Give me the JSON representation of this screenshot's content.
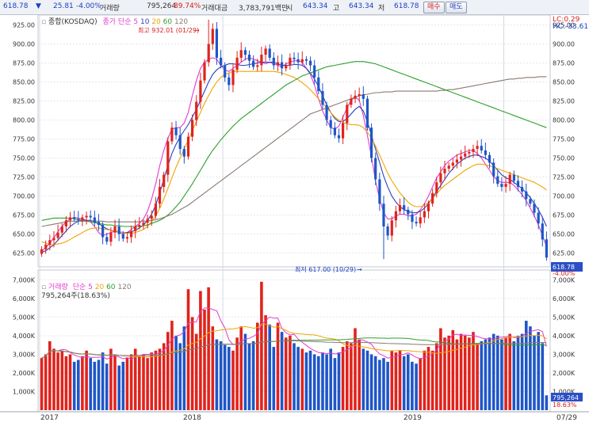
{
  "header": {
    "price": "618.78",
    "arrow": "▼",
    "change": "25.81",
    "change_pct": "-4.00%",
    "volume_label": "거래량",
    "volume": "795,264",
    "volume_ratio": "89.74%",
    "amount_label": "거래대금",
    "amount": "3,783,791백만",
    "open_label": "시",
    "open": "643.34",
    "high_label": "고",
    "high": "643.34",
    "low_label": "저",
    "low": "618.78",
    "buy_label": "매수",
    "sell_label": "매도"
  },
  "price_panel": {
    "name": "종합(KOSDAQ)",
    "ma_label": "종가 단순",
    "ma_periods": [
      "5",
      "10",
      "20",
      "60",
      "120"
    ],
    "lc": "LC:0.29",
    "hc": "HC:-33.61",
    "high_note": "최고 932.01 (01/29)",
    "low_note": "최저 617.00 (10/29)",
    "last_price": "618.78",
    "last_change": "-4.00%"
  },
  "volume_panel": {
    "name": "거래량",
    "ma_label": "단순",
    "ma_periods": [
      "5",
      "20",
      "60",
      "120"
    ],
    "current": "795,264주(18.63%)",
    "last_value": "795,264",
    "last_pct": "18.63%"
  },
  "x_axis": {
    "labels": [
      "2017",
      "2018",
      "2019"
    ],
    "end_label": "07/29"
  },
  "colors": {
    "up": "#e0231c",
    "down": "#1f56c8",
    "ma5": "#e23bd0",
    "ma10": "#2a3fc0",
    "ma20": "#f0a400",
    "ma60": "#2ea02e",
    "ma120": "#8a7a70"
  },
  "chart_data": [
    {
      "type": "candlestick",
      "title": "종합(KOSDAQ)",
      "period": "weekly",
      "ylim": [
        610,
        935
      ],
      "yticks": [
        "925.00",
        "900.00",
        "875.00",
        "850.00",
        "825.00",
        "800.00",
        "775.00",
        "750.00",
        "725.00",
        "700.00",
        "675.00",
        "650.00",
        "625.00"
      ],
      "close": [
        630,
        636,
        642,
        645,
        652,
        660,
        668,
        672,
        670,
        668,
        672,
        674,
        672,
        666,
        662,
        646,
        640,
        652,
        660,
        650,
        644,
        646,
        654,
        660,
        662,
        665,
        670,
        674,
        690,
        712,
        728,
        772,
        790,
        780,
        762,
        752,
        778,
        800,
        824,
        852,
        876,
        900,
        920,
        882,
        872,
        856,
        846,
        866,
        882,
        892,
        886,
        878,
        870,
        872,
        886,
        894,
        882,
        872,
        876,
        868,
        872,
        882,
        880,
        876,
        880,
        878,
        872,
        856,
        838,
        820,
        800,
        790,
        780,
        776,
        796,
        820,
        828,
        832,
        834,
        828,
        790,
        750,
        722,
        690,
        660,
        648,
        668,
        680,
        688,
        682,
        676,
        666,
        664,
        672,
        680,
        690,
        704,
        718,
        730,
        736,
        740,
        744,
        748,
        752,
        756,
        758,
        762,
        766,
        760,
        754,
        744,
        726,
        716,
        712,
        716,
        728,
        720,
        712,
        706,
        696,
        690,
        678,
        664,
        643,
        619
      ],
      "up": [
        1,
        1,
        1,
        1,
        1,
        1,
        1,
        1,
        0,
        0,
        1,
        1,
        0,
        0,
        0,
        0,
        0,
        1,
        1,
        0,
        0,
        1,
        1,
        1,
        1,
        1,
        1,
        1,
        1,
        1,
        1,
        1,
        1,
        0,
        0,
        0,
        1,
        1,
        1,
        1,
        1,
        1,
        1,
        0,
        0,
        0,
        0,
        1,
        1,
        1,
        0,
        0,
        0,
        1,
        1,
        1,
        0,
        0,
        1,
        0,
        1,
        1,
        0,
        0,
        1,
        0,
        0,
        0,
        0,
        0,
        0,
        0,
        0,
        0,
        1,
        1,
        1,
        1,
        1,
        0,
        0,
        0,
        0,
        0,
        0,
        0,
        1,
        1,
        1,
        0,
        0,
        0,
        0,
        1,
        1,
        1,
        1,
        1,
        1,
        1,
        1,
        1,
        1,
        1,
        1,
        1,
        1,
        1,
        0,
        0,
        0,
        0,
        0,
        0,
        1,
        1,
        0,
        0,
        0,
        0,
        0,
        0,
        0,
        0,
        0
      ],
      "ma_series": [
        {
          "name": "5",
          "color": "#e23bd0",
          "values": [
            628,
            632,
            638,
            645,
            653,
            660,
            666,
            670,
            672,
            671,
            670,
            668,
            666,
            660,
            652,
            648,
            650,
            652,
            654,
            652,
            650,
            652,
            656,
            660,
            664,
            670,
            680,
            696,
            716,
            740,
            760,
            776,
            788,
            790,
            790,
            796,
            810,
            832,
            852,
            868,
            876,
            880,
            882,
            880,
            872,
            866,
            864,
            868,
            872,
            876,
            880,
            882,
            880,
            878,
            876,
            874,
            876,
            874,
            872,
            870,
            874,
            876,
            878,
            878,
            876,
            868,
            860,
            846,
            828,
            812,
            800,
            790,
            788,
            792,
            804,
            816,
            826,
            830,
            826,
            806,
            780,
            752,
            720,
            696,
            678,
            670,
            670,
            674,
            676,
            676,
            674,
            674,
            676,
            682,
            690,
            700,
            712,
            724,
            732,
            740,
            746,
            750,
            754,
            756,
            758,
            760,
            760,
            756,
            750,
            742,
            734,
            726,
            720,
            718,
            718,
            718,
            714,
            708,
            702,
            694,
            684,
            674,
            662,
            648,
            634
          ]
        },
        {
          "name": "10",
          "color": "#2a3fc0",
          "values": [
            626,
            628,
            632,
            636,
            642,
            648,
            654,
            660,
            664,
            667,
            668,
            668,
            668,
            666,
            664,
            660,
            657,
            655,
            654,
            653,
            652,
            652,
            653,
            655,
            658,
            662,
            668,
            676,
            688,
            704,
            722,
            740,
            756,
            768,
            778,
            786,
            794,
            804,
            814,
            826,
            838,
            850,
            860,
            866,
            870,
            872,
            874,
            874,
            873,
            872,
            872,
            873,
            874,
            875,
            876,
            876,
            876,
            876,
            874,
            872,
            872,
            872,
            873,
            873,
            872,
            868,
            862,
            854,
            844,
            832,
            820,
            810,
            802,
            798,
            798,
            802,
            808,
            814,
            818,
            812,
            798,
            780,
            762,
            744,
            726,
            712,
            700,
            692,
            686,
            682,
            680,
            678,
            678,
            680,
            684,
            690,
            698,
            706,
            714,
            722,
            730,
            736,
            742,
            746,
            750,
            752,
            754,
            754,
            752,
            750,
            746,
            740,
            734,
            728,
            724,
            722,
            718,
            714,
            710,
            704,
            698,
            690,
            682,
            672,
            660
          ]
        },
        {
          "name": "20",
          "color": "#f0a400",
          "values": [
            640,
            638,
            636,
            636,
            637,
            638,
            640,
            643,
            646,
            649,
            652,
            655,
            657,
            658,
            658,
            657,
            656,
            655,
            654,
            653,
            652,
            651,
            651,
            652,
            654,
            656,
            660,
            666,
            674,
            684,
            696,
            710,
            724,
            738,
            750,
            762,
            774,
            786,
            798,
            810,
            822,
            832,
            842,
            850,
            856,
            860,
            862,
            864,
            864,
            864,
            864,
            864,
            864,
            864,
            864,
            864,
            864,
            864,
            863,
            862,
            860,
            858,
            856,
            853,
            849,
            845,
            840,
            834,
            828,
            822,
            816,
            810,
            804,
            800,
            797,
            795,
            794,
            794,
            793,
            790,
            784,
            776,
            766,
            754,
            742,
            730,
            720,
            712,
            704,
            698,
            692,
            688,
            686,
            686,
            688,
            692,
            697,
            703,
            709,
            714,
            718,
            722,
            726,
            730,
            734,
            737,
            740,
            742,
            742,
            741,
            740,
            738,
            736,
            734,
            732,
            730,
            728,
            726,
            724,
            722,
            720,
            718,
            715,
            712,
            708
          ]
        },
        {
          "name": "60",
          "color": "#2ea02e",
          "values": [
            668,
            669,
            670,
            671,
            671,
            671,
            671,
            671,
            670,
            669,
            668,
            667,
            666,
            665,
            664,
            663,
            662,
            662,
            661,
            661,
            660,
            660,
            660,
            660,
            660,
            661,
            662,
            664,
            666,
            668,
            671,
            675,
            680,
            686,
            692,
            700,
            708,
            716,
            725,
            734,
            743,
            752,
            760,
            767,
            774,
            780,
            786,
            792,
            797,
            802,
            806,
            810,
            814,
            818,
            822,
            826,
            830,
            834,
            838,
            842,
            846,
            849,
            852,
            855,
            858,
            860,
            862,
            864,
            866,
            868,
            870,
            871,
            872,
            873,
            874,
            875,
            876,
            877,
            877,
            877,
            876,
            875,
            874,
            872,
            870,
            868,
            866,
            864,
            862,
            860,
            858,
            856,
            854,
            852,
            850,
            848,
            846,
            844,
            842,
            840,
            838,
            836,
            834,
            832,
            830,
            828,
            826,
            824,
            822,
            820,
            818,
            816,
            814,
            812,
            810,
            808,
            806,
            804,
            802,
            800,
            798,
            796,
            794,
            792,
            790
          ]
        },
        {
          "name": "120",
          "color": "#8a7a70",
          "values": [
            660,
            661,
            662,
            663,
            664,
            665,
            666,
            667,
            667,
            667,
            667,
            667,
            667,
            667,
            667,
            667,
            666,
            666,
            666,
            666,
            666,
            666,
            666,
            666,
            666,
            667,
            667,
            668,
            669,
            670,
            672,
            674,
            676,
            679,
            682,
            685,
            688,
            692,
            696,
            700,
            704,
            708,
            712,
            716,
            720,
            724,
            728,
            732,
            736,
            740,
            744,
            748,
            752,
            756,
            760,
            764,
            768,
            772,
            776,
            780,
            784,
            788,
            792,
            796,
            800,
            804,
            808,
            810,
            812,
            814,
            816,
            818,
            820,
            822,
            824,
            826,
            828,
            830,
            832,
            833,
            834,
            835,
            836,
            836,
            837,
            837,
            837,
            838,
            838,
            838,
            838,
            838,
            838,
            838,
            838,
            838,
            838,
            838,
            839,
            839,
            840,
            840,
            841,
            842,
            843,
            844,
            845,
            846,
            847,
            848,
            849,
            850,
            851,
            852,
            853,
            854,
            854,
            855,
            855,
            856,
            856,
            856,
            857,
            857,
            857
          ]
        }
      ]
    },
    {
      "type": "bar",
      "title": "거래량",
      "unit": "K",
      "ylim": [
        0,
        7400
      ],
      "yticks": [
        "7,000K",
        "6,000K",
        "5,000K",
        "4,000K",
        "3,000K",
        "2,000K",
        "1,000K"
      ],
      "values": [
        2800,
        3000,
        3700,
        3300,
        3100,
        3200,
        2900,
        3000,
        2600,
        2700,
        2900,
        3200,
        2800,
        2600,
        2700,
        3100,
        2500,
        3300,
        3000,
        2400,
        2600,
        2800,
        3000,
        3300,
        2900,
        3000,
        2800,
        3100,
        3200,
        3300,
        3600,
        4200,
        4800,
        4000,
        3600,
        4500,
        6500,
        5000,
        4100,
        6400,
        5400,
        6600,
        4500,
        3800,
        3700,
        3500,
        3400,
        3200,
        3900,
        4500,
        4100,
        3600,
        3700,
        4700,
        6900,
        5100,
        4600,
        3400,
        4700,
        4200,
        3900,
        4000,
        3600,
        3400,
        3300,
        3100,
        3200,
        3000,
        2900,
        3100,
        3000,
        3300,
        2800,
        3100,
        3400,
        3700,
        3600,
        4400,
        3800,
        3300,
        3200,
        3000,
        2900,
        2700,
        2800,
        2600,
        3200,
        3100,
        3200,
        2900,
        3000,
        2600,
        2500,
        2800,
        3200,
        3400,
        3200,
        3600,
        4400,
        3900,
        4000,
        4300,
        3800,
        4100,
        4000,
        3900,
        4200,
        3600,
        3700,
        3800,
        3900,
        4100,
        4000,
        3800,
        3900,
        4100,
        3700,
        4000,
        4100,
        4800,
        4500,
        4000,
        4200,
        3600,
        795
      ]
    }
  ]
}
